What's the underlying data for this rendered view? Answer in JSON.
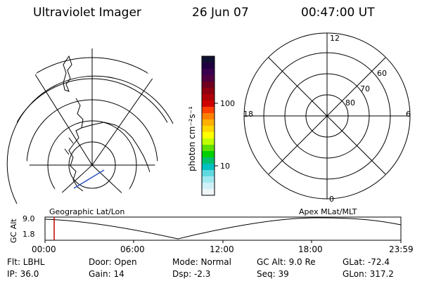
{
  "header": {
    "title": "Ultraviolet Imager",
    "date": "26 Jun 07",
    "time": "00:47:00 UT"
  },
  "colorbar": {
    "unit_label": "photon cm⁻²s⁻¹",
    "ticks": [
      "100",
      "10"
    ],
    "colors": [
      "#101030",
      "#200040",
      "#3a0050",
      "#500040",
      "#700020",
      "#900010",
      "#b00008",
      "#d00000",
      "#ff4000",
      "#ff8000",
      "#ffb000",
      "#ffd800",
      "#ffff00",
      "#c0ff00",
      "#60e000",
      "#00d000",
      "#00c070",
      "#00c0c0",
      "#60d8e0",
      "#a0e8f0",
      "#d0f0f8",
      "#eef6fa"
    ]
  },
  "left_map": {
    "label": "Geographic Lat/Lon"
  },
  "right_map": {
    "label": "Apex  MLat/MLT",
    "mlt_labels": {
      "top": "12",
      "left": "18",
      "right": "6",
      "bottom": "0"
    },
    "lat_labels": [
      "60",
      "70",
      "80"
    ]
  },
  "gc_plot": {
    "ylabel": "GC Alt",
    "yticks": [
      "9.0",
      "1.8"
    ],
    "xticks": [
      "00:00",
      "06:00",
      "12:00",
      "18:00",
      "23:59"
    ],
    "marker_color": "#c00000"
  },
  "info": {
    "filter": "Flt: LBHL",
    "ip": "IP: 36.0",
    "door": "Door: Open",
    "gain": "Gain: 14",
    "mode": "Mode: Normal",
    "dsp": "Dsp:    -2.3",
    "gc_alt": "GC Alt: 9.0 Re",
    "seq": "Seq: 39",
    "glat": "GLat: -72.4",
    "glon": "GLon: 317.2"
  }
}
